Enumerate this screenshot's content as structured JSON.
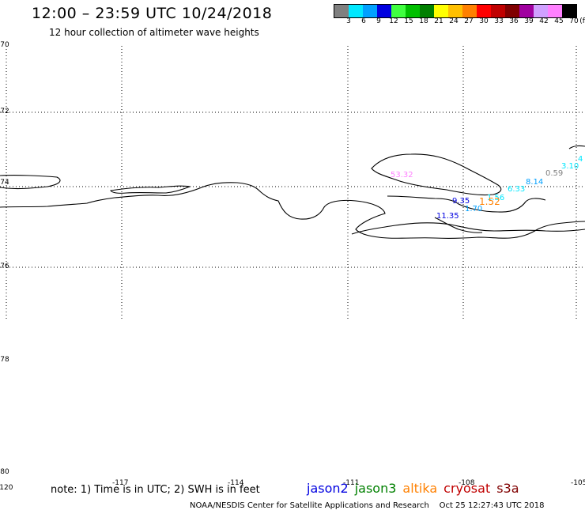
{
  "header": {
    "title": "12:00 – 23:59 UTC 10/24/2018",
    "subtitle": "12 hour collection of altimeter wave heights"
  },
  "legend": {
    "colors": [
      "#808080",
      "#00e8ff",
      "#00a0ff",
      "#0000e0",
      "#40ff40",
      "#00c000",
      "#008000",
      "#ffff00",
      "#ffc000",
      "#ff8000",
      "#ff0000",
      "#c00000",
      "#800000",
      "#a000a0",
      "#d0a0ff",
      "#ff80ff",
      "#000000"
    ],
    "labels": [
      "3",
      "6",
      "9",
      "12",
      "15",
      "18",
      "21",
      "24",
      "27",
      "30",
      "33",
      "36",
      "39",
      "42",
      "45",
      "70",
      "(ft)"
    ]
  },
  "map": {
    "lat_labels": [
      "-70",
      "-72",
      "-74",
      "-76",
      "-78",
      "-80"
    ],
    "lon_labels": [
      "-120",
      "-117",
      "-114",
      "-111",
      "-108",
      "-105"
    ],
    "wave_heights": [
      {
        "text": "53.32",
        "color": "#ff80ff"
      },
      {
        "text": "0.59",
        "color": "#808080"
      },
      {
        "text": "3.10",
        "color": "#00e8ff"
      },
      {
        "text": "4",
        "color": "#00e8ff"
      },
      {
        "text": "8.14",
        "color": "#00a0ff"
      },
      {
        "text": "6.33",
        "color": "#00e8ff"
      },
      {
        "text": "9.35",
        "color": "#0000e0"
      },
      {
        "text": "1.56",
        "color": "#00e8ff"
      },
      {
        "text": "1.70",
        "color": "#00a0ff"
      },
      {
        "text": "1.52",
        "color": "#ff8000"
      },
      {
        "text": "11.35",
        "color": "#0000e0"
      }
    ]
  },
  "footer": {
    "note": "note: 1) Time is in UTC; 2) SWH is in feet",
    "satellites": [
      {
        "name": "jason2",
        "color": "#0000e0"
      },
      {
        "name": "jason3",
        "color": "#008000"
      },
      {
        "name": "altika",
        "color": "#ff8000"
      },
      {
        "name": "cryosat",
        "color": "#c00000"
      },
      {
        "name": "s3a",
        "color": "#800000"
      }
    ],
    "credit": "NOAA/NESDIS Center for Satellite Applications and Research",
    "timestamp": "Oct 25 12:27:43 UTC 2018"
  }
}
